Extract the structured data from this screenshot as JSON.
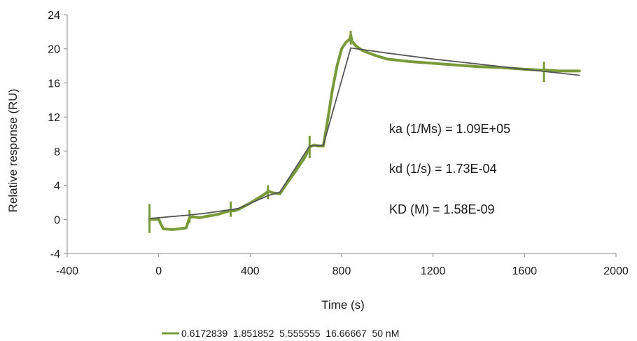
{
  "chart_data": {
    "type": "line",
    "xlabel": "Time (s)",
    "ylabel": "Relative response (RU)",
    "xlim": [
      -400,
      2000
    ],
    "ylim": [
      -4,
      24
    ],
    "xticks": [
      -400,
      0,
      400,
      800,
      1200,
      1600,
      2000
    ],
    "yticks": [
      -4,
      0,
      4,
      8,
      12,
      16,
      20,
      24
    ],
    "grid": false,
    "legend_position": "bottom",
    "legend_label": "0.6172839  1.851852  5.555555  16.66667  50 nM",
    "colors": {
      "measured": "#7a9a3a",
      "fit": "#555555"
    },
    "annotations": [
      "ka (1/Ms) = 1.09E+05",
      "kd (1/s) = 1.73E-04",
      "KD (M) =  1.58E-09"
    ],
    "series": [
      {
        "role": "measured",
        "x": [
          -40,
          0,
          20,
          60,
          120,
          135,
          150,
          180,
          200,
          260,
          310,
          330,
          350,
          400,
          460,
          480,
          500,
          530,
          560,
          600,
          640,
          660,
          680,
          700,
          720,
          740,
          760,
          780,
          800,
          820,
          835,
          840,
          845,
          860,
          880,
          900,
          950,
          1000,
          1100,
          1200,
          1300,
          1400,
          1500,
          1600,
          1680,
          1700,
          1750,
          1800,
          1840
        ],
        "y": [
          0.0,
          0.0,
          -1.1,
          -1.2,
          -1.0,
          0.2,
          0.3,
          0.2,
          0.3,
          0.6,
          1.0,
          1.0,
          1.2,
          1.9,
          2.9,
          3.3,
          3.1,
          3.0,
          4.2,
          5.7,
          7.3,
          8.5,
          8.7,
          8.6,
          8.6,
          11.8,
          15.2,
          18.0,
          20.0,
          20.8,
          21.1,
          21.6,
          20.9,
          20.4,
          20.0,
          19.7,
          19.2,
          18.8,
          18.5,
          18.3,
          18.1,
          17.9,
          17.8,
          17.6,
          17.5,
          17.5,
          17.4,
          17.4,
          17.4
        ]
      },
      {
        "role": "fit",
        "x": [
          -40,
          0,
          130,
          200,
          330,
          350,
          480,
          530,
          660,
          720,
          840,
          1000,
          1200,
          1400,
          1600,
          1840
        ],
        "y": [
          0.1,
          0.2,
          0.5,
          0.7,
          1.2,
          1.3,
          2.8,
          3.2,
          8.6,
          8.7,
          20.1,
          19.5,
          18.8,
          18.2,
          17.6,
          16.9
        ]
      }
    ],
    "spikes": [
      {
        "x": -40,
        "y": [
          -1.6,
          1.8
        ]
      },
      {
        "x": 135,
        "y": [
          -0.4,
          1.1
        ]
      },
      {
        "x": 315,
        "y": [
          0.3,
          2.1
        ]
      },
      {
        "x": 478,
        "y": [
          2.4,
          4.0
        ]
      },
      {
        "x": 660,
        "y": [
          7.2,
          9.8
        ]
      },
      {
        "x": 840,
        "y": [
          20.5,
          22.1
        ]
      },
      {
        "x": 1685,
        "y": [
          16.1,
          18.5
        ]
      }
    ]
  }
}
